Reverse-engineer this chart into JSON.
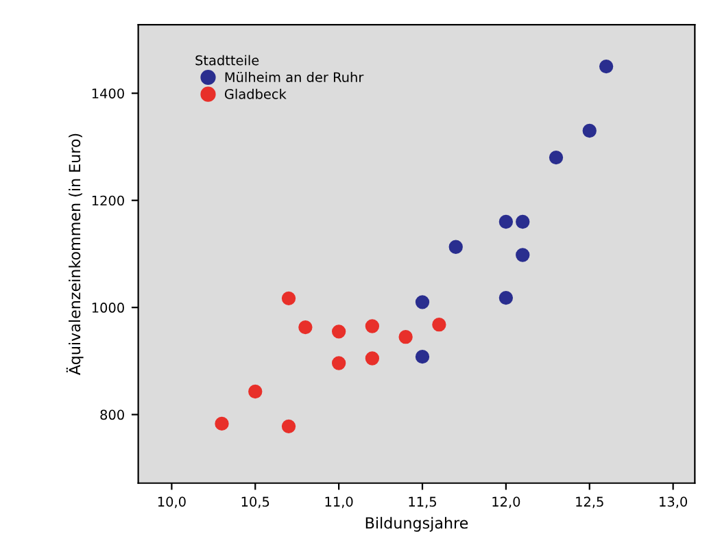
{
  "chart_data": {
    "type": "scatter",
    "xlabel": "Bildungsjahre",
    "ylabel": "Äquivalenzeinkommen (in Euro)",
    "legend_title": "Stadtteile",
    "legend": "top left",
    "marker": "circle",
    "grid": false,
    "xlim": [
      9.8,
      13.13
    ],
    "ylim": [
      672,
      1528
    ],
    "xticks": [
      {
        "value": 10.0,
        "label": "10,0"
      },
      {
        "value": 10.5,
        "label": "10,5"
      },
      {
        "value": 11.0,
        "label": "11,0"
      },
      {
        "value": 11.5,
        "label": "11,5"
      },
      {
        "value": 12.0,
        "label": "12,0"
      },
      {
        "value": 12.5,
        "label": "12,5"
      },
      {
        "value": 13.0,
        "label": "13,0"
      }
    ],
    "yticks": [
      800,
      1000,
      1200,
      1400
    ],
    "series": [
      {
        "name": "Mülheim an der Ruhr",
        "color": "#2a2e8f",
        "x": [
          11.5,
          11.5,
          11.7,
          12.0,
          12.0,
          12.1,
          12.1,
          12.3,
          12.5,
          12.6
        ],
        "values": [
          1010,
          908,
          1113,
          1160,
          1018,
          1160,
          1098,
          1280,
          1330,
          1450
        ]
      },
      {
        "name": "Gladbeck",
        "color": "#e8302a",
        "x": [
          10.3,
          10.5,
          10.7,
          10.7,
          10.8,
          11.0,
          11.0,
          11.2,
          11.2,
          11.4,
          11.6
        ],
        "values": [
          783,
          843,
          1017,
          778,
          963,
          955,
          896,
          965,
          905,
          945,
          968
        ]
      }
    ]
  }
}
